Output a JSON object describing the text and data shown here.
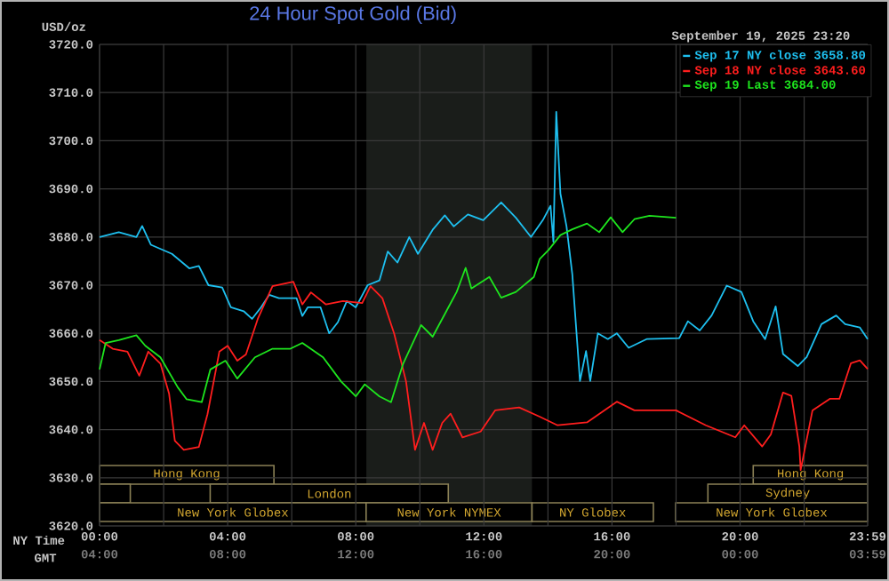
{
  "chart_data": {
    "type": "line",
    "title": "24 Hour Spot Gold (Bid)",
    "ylabel": "USD/oz",
    "xlabel": "NY Time",
    "x2label": "GMT",
    "legend_title": "September 19, 2025 23:20",
    "xlim": [
      0,
      23.983
    ],
    "ylim": [
      3620,
      3720
    ],
    "xticks": [
      {
        "value": 0,
        "label": "00:00"
      },
      {
        "value": 2,
        "label": null
      },
      {
        "value": 4,
        "label": "04:00"
      },
      {
        "value": 6,
        "label": null
      },
      {
        "value": 8,
        "label": "08:00"
      },
      {
        "value": 10,
        "label": null
      },
      {
        "value": 12,
        "label": "12:00"
      },
      {
        "value": 14,
        "label": null
      },
      {
        "value": 16,
        "label": "16:00"
      },
      {
        "value": 18,
        "label": null
      },
      {
        "value": 20,
        "label": "20:00"
      },
      {
        "value": 22,
        "label": null
      },
      {
        "value": 23.983,
        "label": "23:59"
      }
    ],
    "x2lim": [
      "2025-09-19T04:00",
      "2025-09-20T03:59"
    ],
    "x2ticks": [
      {
        "value": "2025-09-19T04:00",
        "label": "04:00"
      },
      {
        "value": "2025-09-19T08:00",
        "label": "08:00"
      },
      {
        "value": "2025-09-19T12:00",
        "label": "12:00"
      },
      {
        "value": "2025-09-19T16:00",
        "label": "16:00"
      },
      {
        "value": "2025-09-19T20:00",
        "label": "20:00"
      },
      {
        "value": "2025-09-20T00:00",
        "label": "00:00"
      },
      {
        "value": "2025-09-20T03:59",
        "label": "03:59"
      }
    ],
    "yticks": [
      {
        "value": 3620,
        "label": "3620.0"
      },
      {
        "value": 3630,
        "label": "3630.0"
      },
      {
        "value": 3640,
        "label": "3640.0"
      },
      {
        "value": 3650,
        "label": "3650.0"
      },
      {
        "value": 3660,
        "label": "3660.0"
      },
      {
        "value": 3670,
        "label": "3670.0"
      },
      {
        "value": 3680,
        "label": "3680.0"
      },
      {
        "value": 3690,
        "label": "3690.0"
      },
      {
        "value": 3700,
        "label": "3700.0"
      },
      {
        "value": 3710,
        "label": "3710.0"
      },
      {
        "value": 3720,
        "label": "3720.0"
      }
    ],
    "grid": true,
    "legend": "top right",
    "marker": "none",
    "line_style": "solid",
    "bands": [
      {
        "axis": "x",
        "from": 8.33,
        "to": 13.5,
        "color": "#1a1d1a"
      }
    ],
    "annotations": [
      "Hong Kong",
      "Hong Kong",
      "London",
      "Sydney",
      "New York Globex",
      "New York NYMEX",
      "NY Globex",
      "New York Globex"
    ],
    "series": [
      {
        "name": "Sep 17 NY close 3658.80",
        "color": "#1ec0f0",
        "x": [
          0,
          0.6,
          1.15,
          1.33,
          1.6,
          2.26,
          2.8,
          3.1,
          3.4,
          3.83,
          4.1,
          4.5,
          4.76,
          5.04,
          5.3,
          5.6,
          6.15,
          6.33,
          6.5,
          6.9,
          7.17,
          7.44,
          7.72,
          8.0,
          8.37,
          8.74,
          9.0,
          9.3,
          9.67,
          9.94,
          10.4,
          10.78,
          11.06,
          11.5,
          11.98,
          12.54,
          13.0,
          13.47,
          13.84,
          14.08,
          14.17,
          14.26,
          14.39,
          14.58,
          14.76,
          15.0,
          15.19,
          15.32,
          15.56,
          15.87,
          16.15,
          16.52,
          17.08,
          18.1,
          18.37,
          18.74,
          19.11,
          19.58,
          20.04,
          20.41,
          20.78,
          21.11,
          21.34,
          21.8,
          22.08,
          22.54,
          23.0,
          23.28,
          23.74,
          23.983
        ],
        "values": [
          3680,
          3681,
          3680,
          3682.3,
          3678.4,
          3676.5,
          3673.5,
          3674,
          3670,
          3669.5,
          3665.4,
          3664.6,
          3663,
          3665.4,
          3668,
          3667.3,
          3667.3,
          3663.6,
          3665.4,
          3665.4,
          3660,
          3662.3,
          3666.7,
          3665.4,
          3670,
          3671,
          3677,
          3674.7,
          3680,
          3676.5,
          3681.5,
          3684.5,
          3682.2,
          3684.7,
          3683.5,
          3687.2,
          3684,
          3680,
          3683.5,
          3686.5,
          3679,
          3706,
          3689,
          3682.2,
          3672.3,
          3650.1,
          3656.3,
          3650.1,
          3660,
          3658.8,
          3660,
          3657,
          3658.8,
          3659,
          3662.5,
          3660.6,
          3663.7,
          3669.9,
          3668.6,
          3662.5,
          3658.8,
          3665.6,
          3655.7,
          3653.2,
          3655.1,
          3661.9,
          3663.7,
          3661.9,
          3661.2,
          3658.8
        ]
      },
      {
        "name": "Sep 18 NY close 3643.60",
        "color": "#ff1e1e",
        "x": [
          0,
          0.41,
          0.87,
          1.24,
          1.52,
          1.9,
          2.17,
          2.35,
          2.63,
          3.1,
          3.37,
          3.74,
          4.0,
          4.3,
          4.57,
          4.94,
          5.4,
          6.05,
          6.33,
          6.6,
          7.07,
          7.6,
          8.2,
          8.46,
          8.83,
          9.2,
          9.57,
          9.85,
          10.13,
          10.4,
          10.7,
          10.96,
          11.33,
          11.9,
          12.35,
          13.1,
          13.74,
          14.3,
          15.22,
          16.15,
          16.7,
          18.0,
          18.93,
          19.85,
          20.13,
          20.69,
          20.96,
          21.34,
          21.6,
          21.85,
          21.89,
          22.26,
          22.8,
          23.1,
          23.46,
          23.74,
          23.983
        ],
        "values": [
          3658.6,
          3656.8,
          3656.2,
          3651.2,
          3656.2,
          3653.7,
          3647.5,
          3637.7,
          3635.8,
          3636.4,
          3643.2,
          3656.2,
          3657.4,
          3654.3,
          3655.6,
          3663,
          3669.8,
          3670.7,
          3666,
          3668.5,
          3666,
          3666.7,
          3666.3,
          3669.8,
          3667.3,
          3659.9,
          3650,
          3635.8,
          3641.4,
          3635.8,
          3641.4,
          3643.3,
          3638.4,
          3639.6,
          3644,
          3644.6,
          3642.7,
          3640.9,
          3641.5,
          3645.8,
          3644,
          3644,
          3640.9,
          3638.4,
          3640.9,
          3636.5,
          3639,
          3647.7,
          3647,
          3636.5,
          3631.6,
          3644,
          3646.4,
          3646.4,
          3653.8,
          3654.4,
          3652.6
        ]
      },
      {
        "name": "Sep 19 Last 3684.00",
        "color": "#1ee61e",
        "x": [
          0,
          0.19,
          0.6,
          1.15,
          1.43,
          1.9,
          2.17,
          2.44,
          2.72,
          3.19,
          3.46,
          3.93,
          4.3,
          4.85,
          5.4,
          5.96,
          6.33,
          6.98,
          7.54,
          8.0,
          8.28,
          8.74,
          9.1,
          9.48,
          10.04,
          10.4,
          10.78,
          11.15,
          11.43,
          11.61,
          12.17,
          12.54,
          13.0,
          13.56,
          13.74,
          14.02,
          14.39,
          14.76,
          15.22,
          15.6,
          15.96,
          16.33,
          16.7,
          17.17,
          18.0
        ],
        "values": [
          3652.5,
          3658,
          3658.6,
          3659.6,
          3657.4,
          3655,
          3651.9,
          3648.8,
          3646.3,
          3645.7,
          3652.5,
          3654.3,
          3650.6,
          3655,
          3656.8,
          3656.8,
          3658,
          3655,
          3650,
          3646.9,
          3649.4,
          3646.9,
          3645.7,
          3653.7,
          3661.7,
          3659.3,
          3664,
          3668.6,
          3673.6,
          3669.3,
          3671.7,
          3667.4,
          3668.6,
          3671.7,
          3675.4,
          3677.3,
          3680.4,
          3681.6,
          3682.8,
          3681,
          3684.1,
          3681,
          3683.7,
          3684.4,
          3684
        ]
      }
    ]
  }
}
